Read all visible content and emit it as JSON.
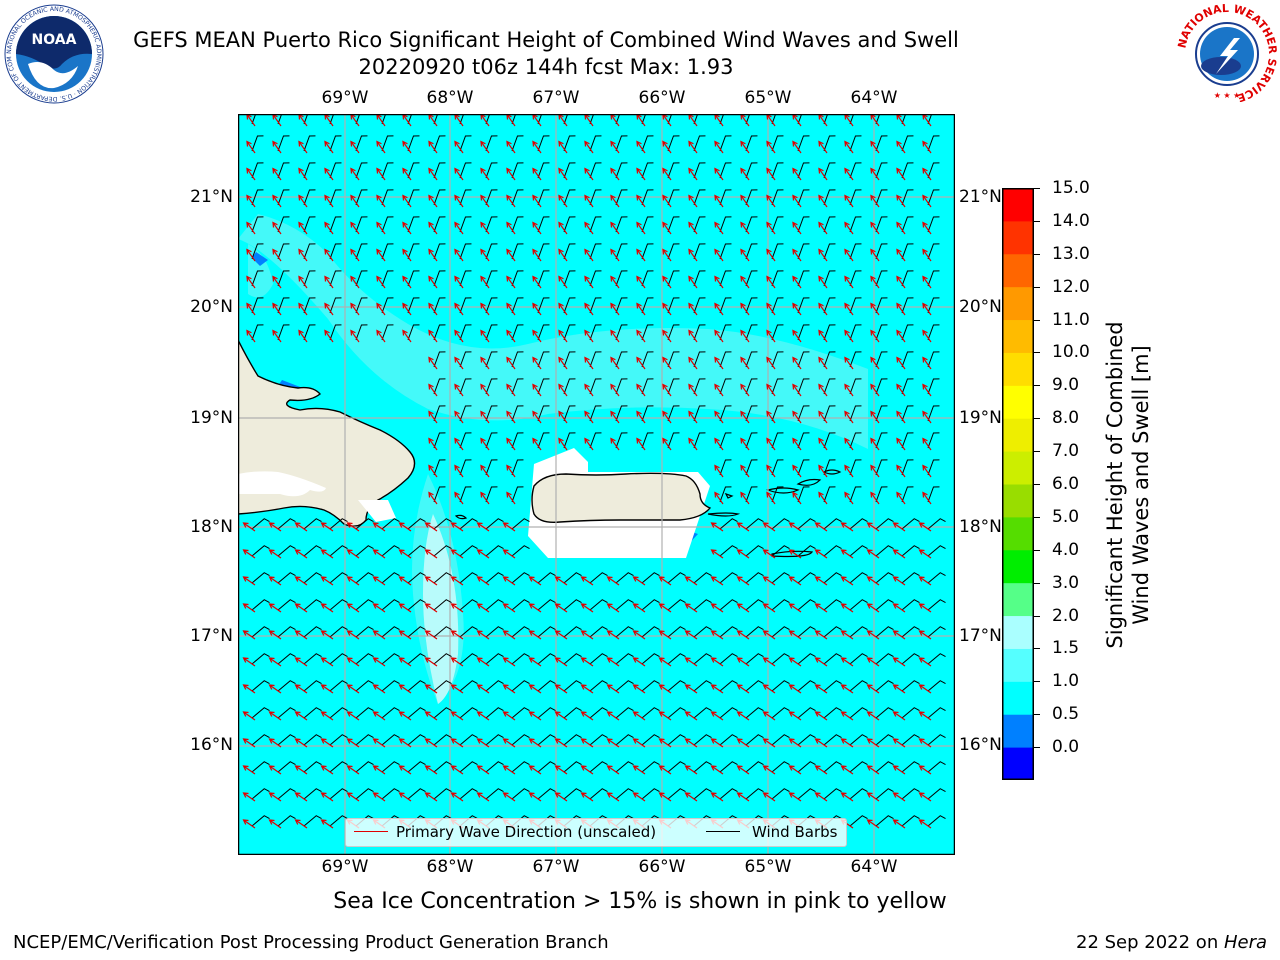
{
  "title": {
    "line1": "GEFS MEAN Puerto Rico Significant Height of Combined Wind Waves and Swell",
    "line2": "20220920 t06z 144h fcst   Max: 1.93"
  },
  "map": {
    "lon_labels": [
      "69°W",
      "68°W",
      "67°W",
      "66°W",
      "65°W",
      "64°W"
    ],
    "lat_labels": [
      "21°N",
      "20°N",
      "19°N",
      "18°N",
      "17°N",
      "16°N"
    ],
    "colors": {
      "ocean": "#00ffff",
      "ocean_light": "#44f9f9",
      "land": "#eeecdc",
      "coast": "#000000",
      "grid": "#b0b0b0",
      "wave_arrow": "#e00000",
      "barb": "#000000",
      "hi_wave": "#0080ff"
    }
  },
  "legend": {
    "wave_label": "Primary Wave Direction (unscaled)",
    "barb_label": "Wind Barbs"
  },
  "colorbar": {
    "label_line1": "Significant Height of Combined",
    "label_line2": "Wind Waves and Swell [m]",
    "ticks": [
      "15.0",
      "14.0",
      "13.0",
      "12.0",
      "11.0",
      "10.0",
      "9.0",
      "8.0",
      "7.0",
      "6.0",
      "5.0",
      "4.0",
      "3.0",
      "2.0",
      "1.5",
      "1.0",
      "0.5",
      "0.0"
    ],
    "colors_bottom_to_top": [
      "#0000ff",
      "#0080ff",
      "#00ffff",
      "#55ffff",
      "#aaffff",
      "#55ff88",
      "#00ee00",
      "#55dd00",
      "#99dd00",
      "#ccee00",
      "#eeee00",
      "#ffff00",
      "#ffdd00",
      "#ffbb00",
      "#ff9900",
      "#ff6600",
      "#ff3300",
      "#ff0000"
    ]
  },
  "note": "Sea Ice Concentration > 15% is shown in pink to yellow",
  "footer": {
    "left": "NCEP/EMC/Verification Post Processing Product Generation Branch",
    "right_date": "22 Sep 2022 on ",
    "right_machine": "Hera"
  },
  "logos": {
    "noaa_text": "NOAA",
    "noaa_ring": "NATIONAL OCEANIC AND ATMOSPHERIC ADMINISTRATION · U.S. DEPARTMENT OF COMMERCE",
    "nws_ring": "NATIONAL WEATHER SERVICE"
  }
}
